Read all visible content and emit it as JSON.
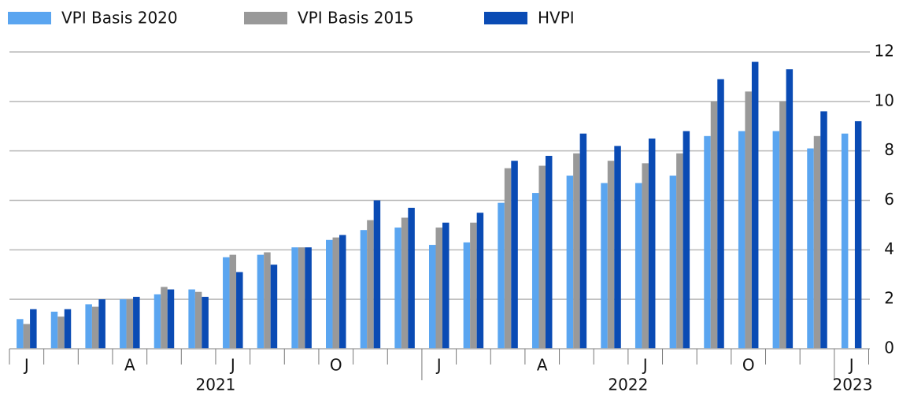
{
  "chart_data": {
    "type": "bar",
    "categories": [
      "J",
      null,
      null,
      "A",
      null,
      null,
      "J",
      null,
      null,
      "O",
      null,
      null,
      "J",
      null,
      null,
      "A",
      null,
      null,
      "J",
      null,
      null,
      "O",
      null,
      null,
      "J"
    ],
    "year_labels": [
      "2021",
      "2022",
      "2023"
    ],
    "series": [
      {
        "name": "VPI Basis 2020",
        "color": "#5aa5f0",
        "values": [
          1.2,
          1.5,
          1.8,
          2.0,
          2.2,
          2.4,
          3.7,
          3.8,
          4.1,
          4.4,
          4.8,
          4.9,
          4.2,
          4.3,
          5.9,
          6.3,
          7.0,
          6.7,
          6.7,
          7.0,
          8.6,
          8.8,
          8.8,
          8.1,
          8.7
        ]
      },
      {
        "name": "VPI Basis 2015",
        "color": "#999999",
        "values": [
          1.0,
          1.3,
          1.7,
          2.0,
          2.5,
          2.3,
          3.8,
          3.9,
          4.1,
          4.5,
          5.2,
          5.3,
          4.9,
          5.1,
          7.3,
          7.4,
          7.9,
          7.6,
          7.5,
          7.9,
          10.0,
          10.4,
          10.0,
          8.6,
          null
        ]
      },
      {
        "name": "HVPI",
        "color": "#0a4bb4",
        "values": [
          1.6,
          1.6,
          2.0,
          2.1,
          2.4,
          2.1,
          3.1,
          3.4,
          4.1,
          4.6,
          6.0,
          5.7,
          5.1,
          5.5,
          7.6,
          7.8,
          8.7,
          8.2,
          8.5,
          8.8,
          10.9,
          11.6,
          11.3,
          9.6,
          9.2
        ]
      }
    ],
    "ylim": [
      0,
      12
    ],
    "yticks": [
      0,
      2,
      4,
      6,
      8,
      10,
      12
    ],
    "grid": true,
    "legend": "top"
  }
}
